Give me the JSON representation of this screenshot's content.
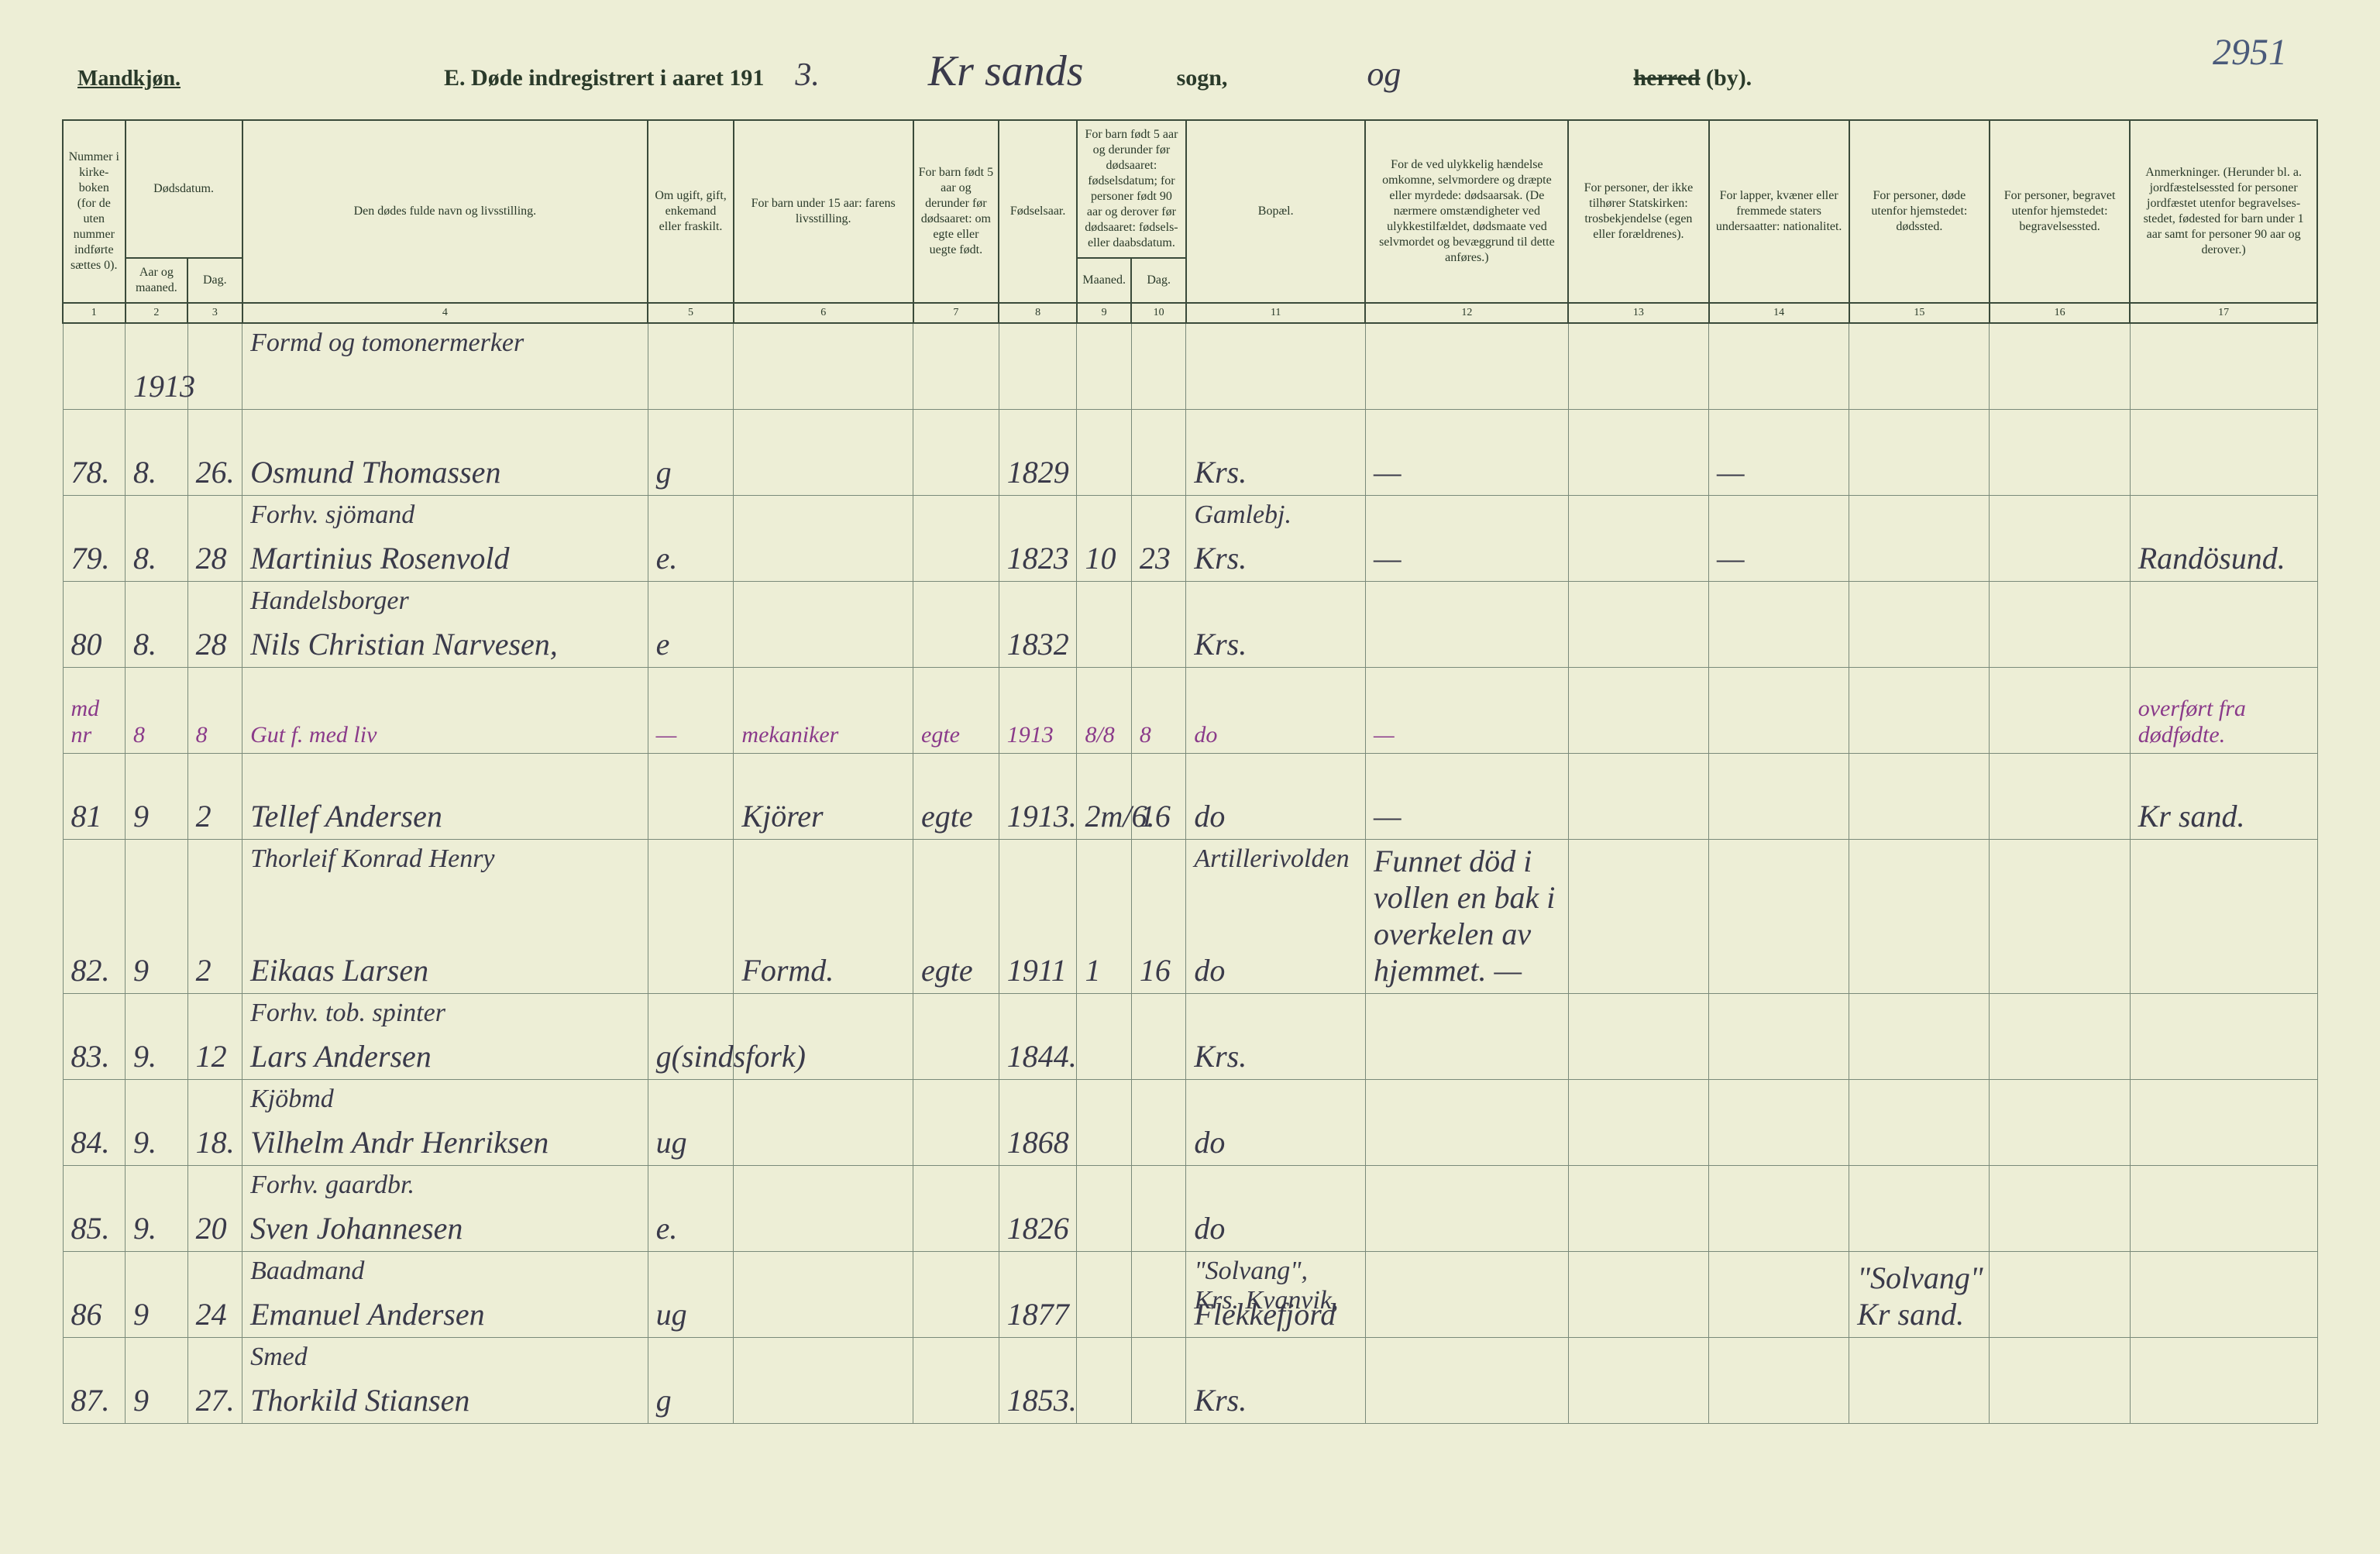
{
  "meta": {
    "page_number_script": "2951",
    "gender_label": "Mandkjøn.",
    "title_prefix": "E.  Døde indregistrert i aaret 191",
    "title_year_suffix": "3.",
    "sogn_script": "Kr sands",
    "sogn_label": "sogn,",
    "og_script": "og",
    "herred_strike": "herred",
    "by_label": "(by)."
  },
  "headers": {
    "c1": "Nummer i kirke­boken (for de uten nummer indførte sættes 0).",
    "c2_top": "Dødsdatum.",
    "c2a": "Aar og maaned.",
    "c2b": "Dag.",
    "c4": "Den dødes fulde navn og livsstilling.",
    "c5": "Om ugift, gift, enke­mand eller fraskilt.",
    "c6": "For barn under 15 aar: farens livsstilling.",
    "c7": "For barn født 5 aar og derunder før døds­aaret: om egte eller uegte født.",
    "c8": "Fødsels­aar.",
    "c9_top": "For barn født 5 aar og der­under før dødsaaret: fødselsdatum; for personer født 90 aar og derover før dødsaaret: fødsels- eller daabsdatum.",
    "c9a": "Maaned.",
    "c9b": "Dag.",
    "c11": "Bopæl.",
    "c12": "For de ved ulykkelig hændelse omkomne, selvmordere og dræpte eller myrdede: dødsaarsak. (De nærmere omstæn­digheter ved ulykkes­tilfældet, dødsmaate ved selvmordet og bevæggrund til dette anføres.)",
    "c13": "For personer, der ikke tilhører Statskirken: trosbekjendelse (egen eller forældrenes).",
    "c14": "For lapper, kvæner eller fremmede staters undersaatter: nationalitet.",
    "c15": "For personer, døde utenfor hjemstedet: dødssted.",
    "c16": "For personer, begravet utenfor hjemstedet: begravelsessted.",
    "c17": "Anmerkninger. (Herunder bl. a. jordfæstelsessted for personer jordfæstet utenfor begravelses­stedet, fødested for barn under 1 aar samt for personer 90 aar og derover.)"
  },
  "colnums": [
    "1",
    "2",
    "3",
    "4",
    "5",
    "6",
    "7",
    "8",
    "9",
    "10",
    "11",
    "12",
    "13",
    "14",
    "15",
    "16",
    "17"
  ],
  "rows": [
    {
      "num": "",
      "aar": "1913",
      "dag": "",
      "name_top": "Formd og tomonermerker",
      "name_bot": "",
      "ug": "",
      "far": "",
      "barn5": "",
      "fods": "",
      "mnd": "",
      "dg": "",
      "bopael": "",
      "ulykk": "",
      "c13": "",
      "c14": "",
      "c15": "",
      "c16": "",
      "anm": "",
      "row_class": "row-short"
    },
    {
      "num": "78.",
      "aar": "8.",
      "dag": "26.",
      "name_top": "",
      "name_bot": "Osmund Thomassen",
      "ug": "g",
      "far": "",
      "barn5": "",
      "fods": "1829",
      "mnd": "",
      "dg": "",
      "bopael": "Krs.",
      "ulykk": "—",
      "c13": "",
      "c14": "—",
      "c15": "",
      "c16": "",
      "anm": "",
      "row_class": "row-med"
    },
    {
      "num": "79.",
      "aar": "8.",
      "dag": "28",
      "name_top": "Forhv. sjömand",
      "name_bot": "Martinius Rosenvold",
      "ug": "e.",
      "far": "",
      "barn5": "",
      "fods": "1823",
      "mnd": "10",
      "dg": "23",
      "bopael_top": "Gamlebj.",
      "bopael": "Krs.",
      "ulykk": "—",
      "c13": "",
      "c14": "—",
      "c15": "",
      "c16": "",
      "anm": "Randösund.",
      "row_class": "row-tall"
    },
    {
      "num": "80",
      "aar": "8.",
      "dag": "28",
      "name_top": "Handelsborger",
      "name_bot": "Nils Christian Narvesen,",
      "ug": "e",
      "far": "",
      "barn5": "",
      "fods": "1832",
      "mnd": "",
      "dg": "",
      "bopael": "Krs.",
      "ulykk": "",
      "c13": "",
      "c14": "",
      "c15": "",
      "c16": "",
      "anm": "",
      "row_class": "row-tall"
    },
    {
      "num": "md nr",
      "aar": "8",
      "dag": "8",
      "name_top": "",
      "name_bot": "Gut f. med liv",
      "ug": "—",
      "far": "mekaniker",
      "barn5": "egte",
      "fods": "1913",
      "mnd": "8/8",
      "dg": "8",
      "bopael": "do",
      "ulykk": "—",
      "c13": "",
      "c14": "",
      "c15": "",
      "c16": "",
      "anm": "overført fra dødfødte.",
      "row_class": "row-short",
      "purple": true
    },
    {
      "num": "81",
      "aar": "9",
      "dag": "2",
      "name_top": "",
      "name_bot": "Tellef Andersen",
      "ug": "",
      "far": "Kjörer",
      "barn5": "egte",
      "fods": "1913.",
      "mnd": "2m/6.",
      "dg": "16",
      "bopael": "do",
      "ulykk": "—",
      "c13": "",
      "c14": "",
      "c15": "",
      "c16": "",
      "anm": "Kr sand.",
      "row_class": "row-med"
    },
    {
      "num": "82.",
      "aar": "9",
      "dag": "2",
      "name_top": "Thorleif Konrad Henry",
      "name_bot": "Eikaas Larsen",
      "ug": "",
      "far": "Formd.",
      "barn5": "egte",
      "fods": "1911",
      "mnd": "1",
      "dg": "16",
      "bopael_top": "Artillerivolden",
      "bopael": "do",
      "ulykk": "Funnet död i vollen en bak i overkelen av hjemmet.  —",
      "c13": "",
      "c14": "",
      "c15": "",
      "c16": "",
      "anm": "",
      "row_class": "row-tall"
    },
    {
      "num": "83.",
      "aar": "9.",
      "dag": "12",
      "name_top": "Forhv. tob. spinter",
      "name_bot": "Lars Andersen",
      "ug": "g(sindsfork)",
      "far": "",
      "barn5": "",
      "fods": "1844.",
      "mnd": "",
      "dg": "",
      "bopael": "Krs.",
      "ulykk": "",
      "c13": "",
      "c14": "",
      "c15": "",
      "c16": "",
      "anm": "",
      "row_class": "row-tall"
    },
    {
      "num": "84.",
      "aar": "9.",
      "dag": "18.",
      "name_top": "Kjöbmd",
      "name_bot": "Vilhelm Andr Henriksen",
      "ug": "ug",
      "far": "",
      "barn5": "",
      "fods": "1868",
      "mnd": "",
      "dg": "",
      "bopael": "do",
      "ulykk": "",
      "c13": "",
      "c14": "",
      "c15": "",
      "c16": "",
      "anm": "",
      "row_class": "row-tall"
    },
    {
      "num": "85.",
      "aar": "9.",
      "dag": "20",
      "name_top": "Forhv. gaardbr.",
      "name_bot": "Sven Johannesen",
      "ug": "e.",
      "far": "",
      "barn5": "",
      "fods": "1826",
      "mnd": "",
      "dg": "",
      "bopael": "do",
      "ulykk": "",
      "c13": "",
      "c14": "",
      "c15": "",
      "c16": "",
      "anm": "",
      "row_class": "row-tall"
    },
    {
      "num": "86",
      "aar": "9",
      "dag": "24",
      "name_top": "Baadmand",
      "name_bot": "Emanuel Andersen",
      "ug": "ug",
      "far": "",
      "barn5": "",
      "fods": "1877",
      "mnd": "",
      "dg": "",
      "bopael_top": "\"Solvang\", Krs. Kvanvik,",
      "bopael": "Flekkefjord",
      "ulykk": "",
      "c13": "",
      "c14": "",
      "c15": "\"Solvang\" Kr sand.",
      "c16": "",
      "anm": "",
      "row_class": "row-tall"
    },
    {
      "num": "87.",
      "aar": "9",
      "dag": "27.",
      "name_top": "Smed",
      "name_bot": "Thorkild Stiansen",
      "ug": "g",
      "far": "",
      "barn5": "",
      "fods": "1853.",
      "mnd": "",
      "dg": "",
      "bopael": "Krs.",
      "ulykk": "",
      "c13": "",
      "c14": "",
      "c15": "",
      "c16": "",
      "anm": "",
      "row_class": "row-tall"
    }
  ]
}
